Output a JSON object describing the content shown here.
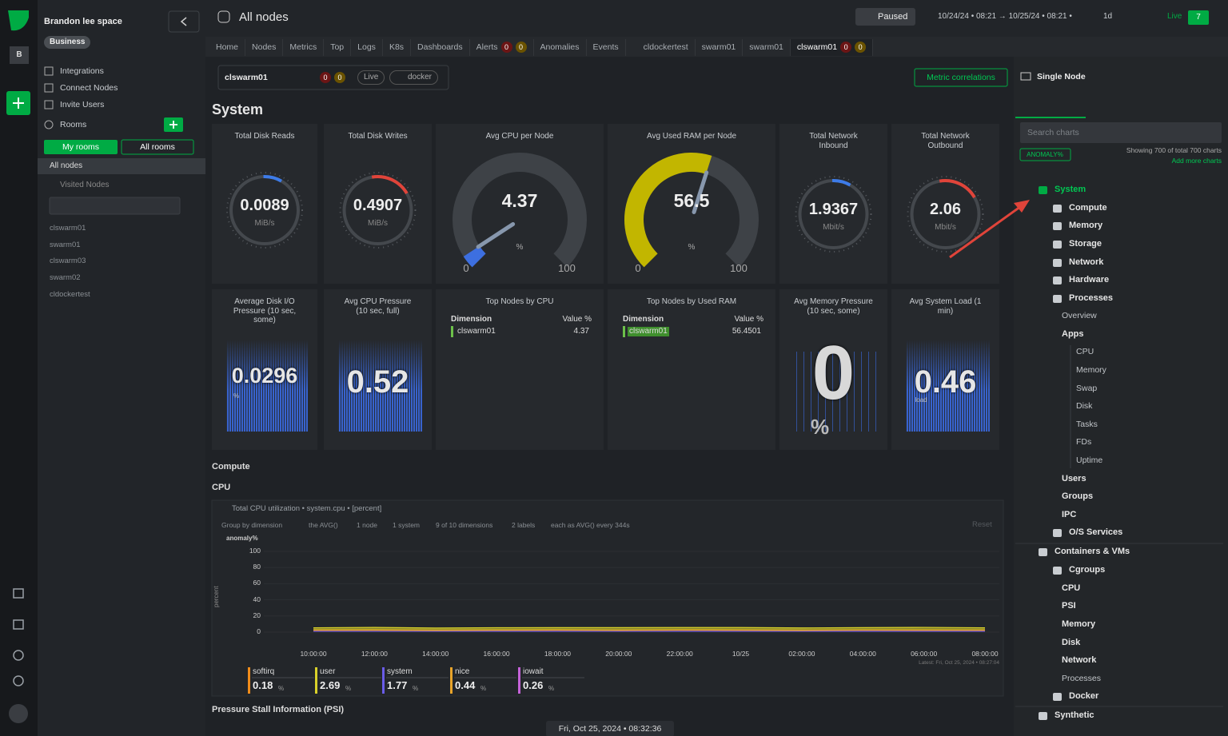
{
  "sidebar": {
    "avatar": "B",
    "space": "Brandon lee space",
    "plan": "Business",
    "menu": [
      "Integrations",
      "Connect Nodes",
      "Invite Users"
    ],
    "rooms": "Rooms",
    "my_rooms": "My rooms",
    "all_rooms": "All rooms",
    "all_nodes": "All nodes",
    "visited": "Visited Nodes",
    "nodes": [
      "clswarm01",
      "swarm01",
      "clswarm03",
      "swarm02",
      "cldockertest"
    ]
  },
  "topbar": {
    "room": "All nodes",
    "paused": "Paused",
    "range": "10/24/24 • 08:21 → 10/25/24 • 08:21 •",
    "span": "1d",
    "live": "Live",
    "live_count": 7
  },
  "tabs": [
    {
      "label": "Home"
    },
    {
      "label": "Nodes"
    },
    {
      "label": "Metrics"
    },
    {
      "label": "Top"
    },
    {
      "label": "Logs"
    },
    {
      "label": "K8s"
    },
    {
      "label": "Dashboards"
    },
    {
      "label": "Alerts",
      "counts": [
        0,
        0
      ]
    },
    {
      "label": "Anomalies"
    },
    {
      "label": "Events"
    },
    {
      "label": "cldockertest"
    },
    {
      "label": "swarm01"
    },
    {
      "label": "swarm01"
    },
    {
      "label": "clswarm01",
      "counts": [
        0,
        0
      ]
    }
  ],
  "node_bar": {
    "node": "clswarm01",
    "counts": [
      0,
      0
    ],
    "live": "Live",
    "tag": "docker",
    "correlations": "Metric correlations"
  },
  "section": "System",
  "gauges": [
    {
      "title": "Total Disk Reads",
      "value": 0.0089,
      "unit": "MiB/s",
      "color": "#3d7be8"
    },
    {
      "title": "Total Disk Writes",
      "value": 0.4907,
      "unit": "MiB/s",
      "color": "#e0443a"
    },
    {
      "title": "Avg CPU per Node",
      "value": 4.37,
      "unit": "%",
      "min": 0,
      "max": 100,
      "color": "#3d6fe0"
    },
    {
      "title": "Avg Used RAM per Node",
      "value": 56.5,
      "unit": "%",
      "min": 0,
      "max": 100,
      "color": "#c2b600"
    },
    {
      "title": "Total Network Inbound",
      "value": 1.9367,
      "unit": "Mbit/s",
      "color": "#3d7be8"
    },
    {
      "title": "Total Network Outbound",
      "value": 2.06,
      "unit": "Mbit/s",
      "color": "#e0443a"
    }
  ],
  "cards": [
    {
      "title": "Average Disk I/O Pressure (10 sec, some)",
      "value": 0.0296,
      "unit": "%"
    },
    {
      "title": "Avg CPU Pressure (10 sec, full)",
      "value": 0.52
    },
    {
      "title": "Top Nodes by CPU",
      "columns": [
        "Dimension",
        "Value %"
      ],
      "rows": [
        [
          "clswarm01",
          4.37
        ]
      ]
    },
    {
      "title": "Top Nodes by Used RAM",
      "columns": [
        "Dimension",
        "Value %"
      ],
      "rows": [
        [
          "clswarm01",
          56.4501
        ]
      ]
    },
    {
      "title": "Avg Memory Pressure (10 sec, some)",
      "value": 0,
      "unit": "%"
    },
    {
      "title": "Avg System Load (1 min)",
      "value": 0.46,
      "unit": "load"
    }
  ],
  "compute": "Compute",
  "cpu": "CPU",
  "toolbar": {
    "group": "Group by dimension",
    "agg": "the AVG()",
    "nodes": "1 node",
    "instances": "1 system",
    "dims": "9 of 10 dimensions",
    "labels": "2 labels",
    "each": "each as AVG() every 344s",
    "reset": "Reset",
    "latest": "Latest: Fri, Oct 25, 2024 • 08:27:04"
  },
  "chart_data": {
    "type": "area",
    "title": "Total CPU utilization • system.cpu • [percent]",
    "y_title": "anomaly%",
    "y_label": "percent",
    "stacked": true,
    "unit": "%",
    "categories": [
      "10:00:00",
      "12:00:00",
      "14:00:00",
      "16:00:00",
      "18:00:00",
      "20:00:00",
      "22:00:00",
      "10/25",
      "02:00:00",
      "04:00:00",
      "06:00:00",
      "08:00:00"
    ],
    "ylim": [
      0,
      100
    ],
    "yticks": [
      0,
      20,
      40,
      60,
      80,
      100
    ],
    "series": [
      {
        "name": "softirq",
        "color": "#f08c1a",
        "current": 0.18,
        "values": [
          0.2,
          0.18,
          0.2,
          0.19,
          0.2,
          0.18,
          0.21,
          0.19,
          0.2,
          0.2,
          0.19,
          0.18
        ]
      },
      {
        "name": "user",
        "color": "#d9d12a",
        "current": 2.69,
        "values": [
          2.7,
          2.9,
          2.6,
          2.8,
          2.7,
          3.0,
          2.8,
          2.9,
          2.7,
          2.8,
          3.1,
          2.7
        ]
      },
      {
        "name": "system",
        "color": "#6a5ce8",
        "current": 1.77,
        "values": [
          1.8,
          1.9,
          1.7,
          1.8,
          1.9,
          1.8,
          2.0,
          1.8,
          1.7,
          1.9,
          1.8,
          1.8
        ]
      },
      {
        "name": "nice",
        "color": "#e8a42a",
        "current": 0.44,
        "values": [
          0.4,
          0.5,
          0.4,
          0.4,
          0.5,
          0.4,
          0.4,
          0.5,
          0.4,
          0.4,
          0.5,
          0.4
        ]
      },
      {
        "name": "iowait",
        "color": "#c462d8",
        "current": 0.26,
        "values": [
          0.3,
          0.3,
          0.2,
          0.3,
          0.3,
          0.2,
          0.3,
          0.3,
          0.2,
          0.3,
          0.3,
          0.3
        ]
      }
    ]
  },
  "psi": "Pressure Stall Information (PSI)",
  "timestamp": "Fri, Oct 25, 2024 • 08:32:36",
  "right": {
    "title": "Single Node",
    "search": "Search charts",
    "anomaly": "ANOMALY%",
    "showing": "Showing 700 of total 700 charts",
    "add": "Add more charts",
    "tree": [
      "System",
      "Compute",
      "Memory",
      "Storage",
      "Network",
      "Hardware",
      "Processes",
      "Overview",
      "Apps",
      "CPU",
      "Memory",
      "Swap",
      "Disk",
      "Tasks",
      "FDs",
      "Uptime",
      "Users",
      "Groups",
      "IPC",
      "O/S Services",
      "Containers & VMs",
      "Cgroups",
      "CPU",
      "PSI",
      "Memory",
      "Disk",
      "Network",
      "Processes",
      "Docker",
      "Synthetic"
    ]
  }
}
